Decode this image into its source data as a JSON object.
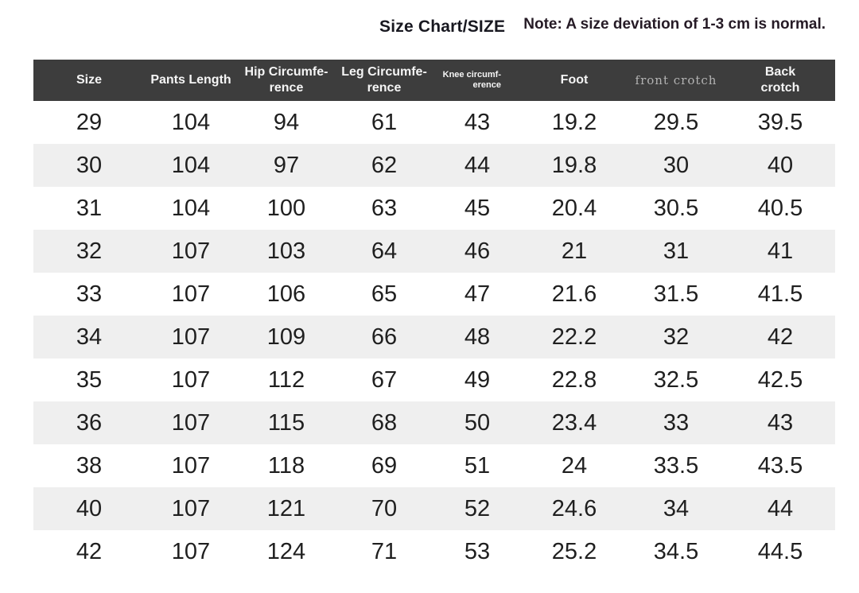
{
  "chart_data": {
    "type": "table",
    "title": "Size Chart/SIZE",
    "note": "Note: A size deviation of 1-3 cm is normal.",
    "columns": [
      {
        "id": "size",
        "line1": "Size",
        "line2": ""
      },
      {
        "id": "pants-length",
        "line1": "Pants Length",
        "line2": ""
      },
      {
        "id": "hip-circumference",
        "line1": "Hip Circumfe-",
        "line2": "rence"
      },
      {
        "id": "leg-circumference",
        "line1": "Leg Circumfe-",
        "line2": "rence"
      },
      {
        "id": "knee-circumference",
        "line1": "Knee circumf-",
        "line2": "erence",
        "small": true
      },
      {
        "id": "foot",
        "line1": "Foot",
        "line2": ""
      },
      {
        "id": "front-crotch",
        "line1": "front crotch",
        "line2": "",
        "styled": "serif-gray"
      },
      {
        "id": "back-crotch",
        "line1": "Back",
        "line2": "crotch"
      }
    ],
    "rows": [
      [
        "29",
        "104",
        "94",
        "61",
        "43",
        "19.2",
        "29.5",
        "39.5"
      ],
      [
        "30",
        "104",
        "97",
        "62",
        "44",
        "19.8",
        "30",
        "40"
      ],
      [
        "31",
        "104",
        "100",
        "63",
        "45",
        "20.4",
        "30.5",
        "40.5"
      ],
      [
        "32",
        "107",
        "103",
        "64",
        "46",
        "21",
        "31",
        "41"
      ],
      [
        "33",
        "107",
        "106",
        "65",
        "47",
        "21.6",
        "31.5",
        "41.5"
      ],
      [
        "34",
        "107",
        "109",
        "66",
        "48",
        "22.2",
        "32",
        "42"
      ],
      [
        "35",
        "107",
        "112",
        "67",
        "49",
        "22.8",
        "32.5",
        "42.5"
      ],
      [
        "36",
        "107",
        "115",
        "68",
        "50",
        "23.4",
        "33",
        "43"
      ],
      [
        "38",
        "107",
        "118",
        "69",
        "51",
        "24",
        "33.5",
        "43.5"
      ],
      [
        "40",
        "107",
        "121",
        "70",
        "52",
        "24.6",
        "34",
        "44"
      ],
      [
        "42",
        "107",
        "124",
        "71",
        "53",
        "25.2",
        "34.5",
        "44.5"
      ]
    ]
  },
  "colors": {
    "header_bg": "#3d3d3d",
    "header_text": "#f5f5f5",
    "stripe": "#efefef",
    "body_text": "#1f1f1f",
    "front_crotch_text": "#b3b3b3",
    "title_text": "#181820",
    "note_text": "#261b26"
  }
}
